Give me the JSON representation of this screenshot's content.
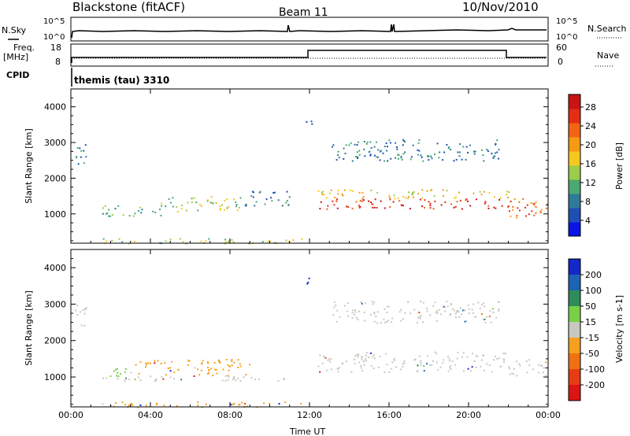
{
  "header": {
    "station": "Blackstone (fitACF)",
    "beam": "Beam 11",
    "date": "10/Nov/2010"
  },
  "strip_labels": {
    "nsky": "N.Sky",
    "nsky_ticks": [
      "10^5",
      "10^0"
    ],
    "nsearch": "N.Search",
    "nsearch_ticks": [
      "10^5",
      "10^0"
    ],
    "freq": "Freq.",
    "freq_unit": "[MHz]",
    "freq_ticks": [
      "18",
      "8"
    ],
    "nave": "Nave",
    "nave_ticks": [
      "60",
      "0"
    ],
    "cpid": "CPID",
    "cpid_value": "themis (tau) 3310"
  },
  "chart_data": [
    {
      "type": "heatmap",
      "panel": "power",
      "ylabel": "Slant Range [km]",
      "ylim": [
        180,
        4500
      ],
      "yticks": [
        "1000",
        "2000",
        "3000",
        "4000"
      ],
      "colorbar": {
        "label": "Power [dB]",
        "ticks": [
          "4",
          "8",
          "12",
          "16",
          "20",
          "24",
          "28"
        ],
        "colors": [
          "#0a14e6",
          "#1f4fb5",
          "#2f7a9a",
          "#4aa870",
          "#9ccc4a",
          "#f5c81e",
          "#f59a14",
          "#f26414",
          "#e42d14",
          "#c81414"
        ]
      },
      "regions": [
        {
          "t0": 0.2,
          "t1": 0.8,
          "r0": 2300,
          "r1": 3000,
          "level": 2
        },
        {
          "t0": 1.5,
          "t1": 4.5,
          "r0": 950,
          "r1": 1250,
          "level": 3
        },
        {
          "t0": 4.5,
          "t1": 8.5,
          "r0": 1050,
          "r1": 1500,
          "level": 4
        },
        {
          "t0": 8.5,
          "t1": 11.0,
          "r0": 1250,
          "r1": 1650,
          "level": 2
        },
        {
          "t0": 11.8,
          "t1": 12.2,
          "r0": 3500,
          "r1": 3800,
          "level": 1
        },
        {
          "t0": 12.4,
          "t1": 22.0,
          "r0": 1150,
          "r1": 1450,
          "level": 8
        },
        {
          "t0": 12.4,
          "t1": 22.0,
          "r0": 1450,
          "r1": 1700,
          "level": 5
        },
        {
          "t0": 13.0,
          "t1": 21.5,
          "r0": 2500,
          "r1": 3100,
          "level": 2
        },
        {
          "t0": 22.0,
          "t1": 24.0,
          "r0": 900,
          "r1": 1500,
          "level": 7
        },
        {
          "t0": 1.5,
          "t1": 12.0,
          "r0": 190,
          "r1": 330,
          "level": 4
        }
      ]
    },
    {
      "type": "heatmap",
      "panel": "velocity",
      "xlabel": "Time UT",
      "ylabel": "Slant Range [km]",
      "ylim": [
        180,
        4500
      ],
      "yticks": [
        "1000",
        "2000",
        "3000",
        "4000"
      ],
      "xticks": [
        "00:00",
        "04:00",
        "08:00",
        "12:00",
        "16:00",
        "20:00",
        "00:00"
      ],
      "colorbar": {
        "label": "Velocity [m s-1]",
        "ticks": [
          "200",
          "100",
          "50",
          "15",
          "-15",
          "-50",
          "-100",
          "-200"
        ],
        "colors": [
          "#1428c8",
          "#1e64b4",
          "#2e8c5a",
          "#78d046",
          "#c8c8c0",
          "#f5a01e",
          "#f07014",
          "#e63c14",
          "#dc1414"
        ]
      },
      "regions": [
        {
          "t0": 0.2,
          "t1": 0.8,
          "r0": 2300,
          "r1": 3000,
          "color": "#c8c8c0"
        },
        {
          "t0": 1.5,
          "t1": 3.2,
          "r0": 950,
          "r1": 1250,
          "color": "#78d046"
        },
        {
          "t0": 3.2,
          "t1": 9.0,
          "r0": 1050,
          "r1": 1500,
          "color": "#f5a01e"
        },
        {
          "t0": 1.5,
          "t1": 11.0,
          "r0": 900,
          "r1": 1050,
          "color": "#c8c8c0"
        },
        {
          "t0": 11.8,
          "t1": 12.2,
          "r0": 3500,
          "r1": 3800,
          "color": "#1428c8"
        },
        {
          "t0": 12.4,
          "t1": 22.0,
          "r0": 1150,
          "r1": 1700,
          "color": "#c8c8c0"
        },
        {
          "t0": 13.0,
          "t1": 21.5,
          "r0": 2500,
          "r1": 3100,
          "color": "#c8c8c0"
        },
        {
          "t0": 22.0,
          "t1": 24.0,
          "r0": 1050,
          "r1": 1500,
          "color": "#c8c8c0"
        },
        {
          "t0": 1.5,
          "t1": 12.0,
          "r0": 190,
          "r1": 330,
          "color": "#f5a01e"
        }
      ]
    }
  ]
}
